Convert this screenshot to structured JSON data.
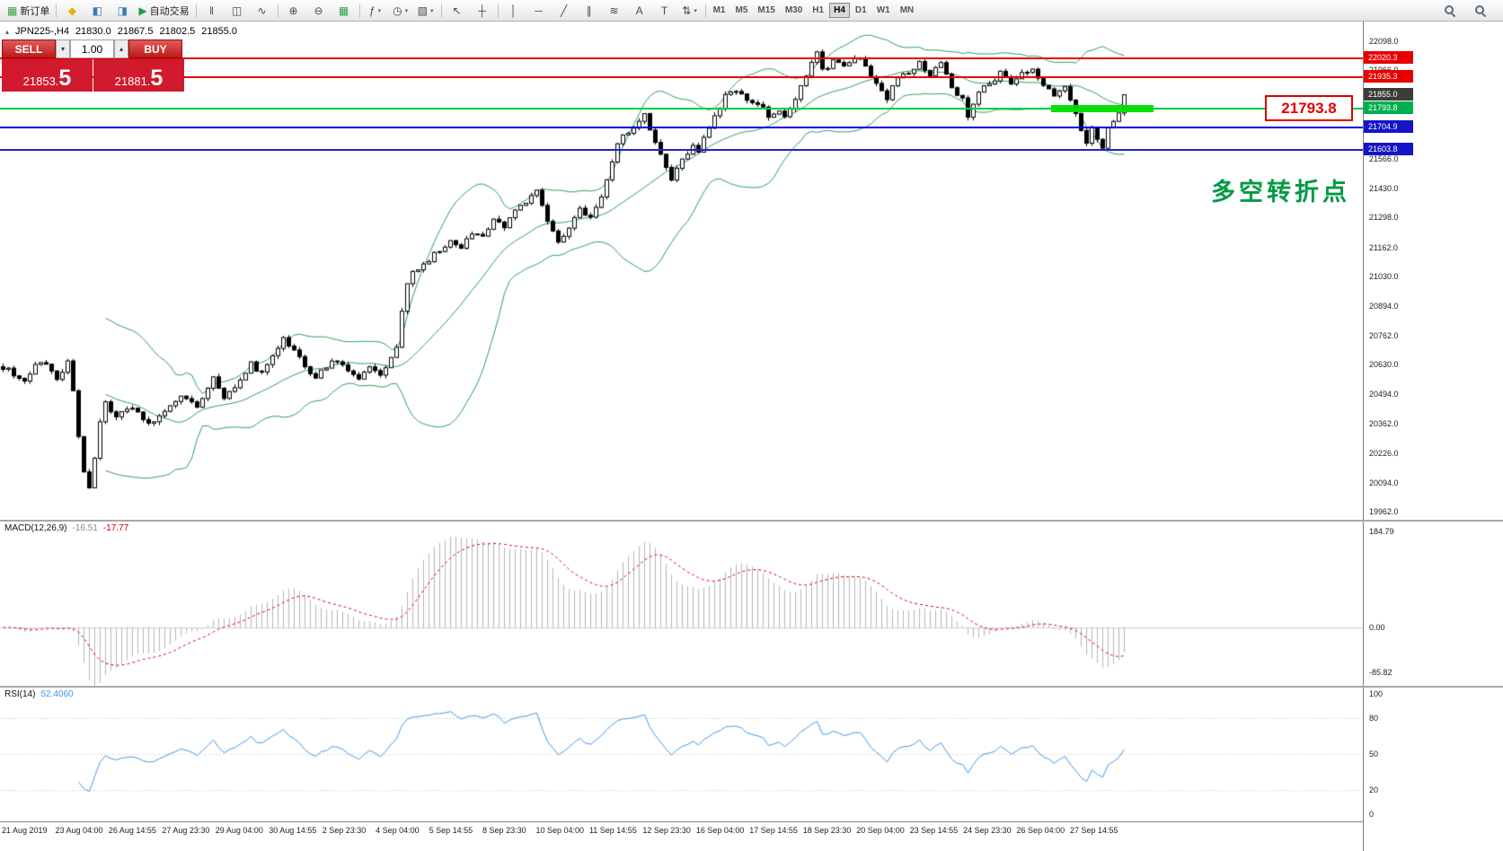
{
  "toolbar": {
    "groups": [
      {
        "items": [
          {
            "name": "new-order-button",
            "glyph": "▦",
            "glyph_color": "#3aa03a",
            "label": "新订单"
          }
        ]
      },
      {
        "items": [
          {
            "name": "favorites-icon",
            "glyph": "◆",
            "glyph_color": "#e8b400"
          },
          {
            "name": "market-watch-icon",
            "glyph": "◧",
            "glyph_color": "#3a7abd"
          },
          {
            "name": "data-window-icon",
            "glyph": "◨",
            "glyph_color": "#3a7abd"
          },
          {
            "name": "autotrading-button",
            "glyph": "▶",
            "glyph_color": "#22a03c",
            "label": "自动交易"
          }
        ]
      },
      {
        "items": [
          {
            "name": "bar-chart-icon",
            "glyph": "ǁ"
          },
          {
            "name": "candlestick-chart-icon",
            "glyph": "◫"
          },
          {
            "name": "line-chart-icon",
            "glyph": "∿"
          }
        ]
      },
      {
        "items": [
          {
            "name": "zoom-in-icon",
            "glyph": "⊕"
          },
          {
            "name": "zoom-out-icon",
            "glyph": "⊖"
          },
          {
            "name": "tile-windows-icon",
            "glyph": "▦",
            "glyph_color": "#2f9e4f"
          }
        ]
      },
      {
        "items": [
          {
            "name": "indicators-icon",
            "glyph": "ƒ",
            "dropdown": true
          },
          {
            "name": "periods-icon",
            "glyph": "◷",
            "dropdown": true
          },
          {
            "name": "templates-icon",
            "glyph": "▧",
            "dropdown": true
          }
        ]
      },
      {
        "items": [
          {
            "name": "cursor-icon",
            "glyph": "↖"
          },
          {
            "name": "crosshair-icon",
            "glyph": "┼"
          }
        ]
      },
      {
        "items": [
          {
            "name": "vertical-line-icon",
            "glyph": "│"
          },
          {
            "name": "horizontal-line-icon",
            "glyph": "─"
          },
          {
            "name": "trendline-icon",
            "glyph": "╱"
          },
          {
            "name": "channel-icon",
            "glyph": "∥"
          },
          {
            "name": "fibonacci-icon",
            "glyph": "≋"
          },
          {
            "name": "text-icon",
            "glyph": "A"
          },
          {
            "name": "label-icon",
            "glyph": "T"
          },
          {
            "name": "arrows-icon",
            "glyph": "⇅",
            "dropdown": true
          }
        ]
      }
    ],
    "timeframes": [
      "M1",
      "M5",
      "M15",
      "M30",
      "H1",
      "H4",
      "D1",
      "W1",
      "MN"
    ],
    "active_timeframe": "H4"
  },
  "trade_panel": {
    "sell_label": "SELL",
    "buy_label": "BUY",
    "volume": "1.00",
    "sell_price_main": "21853.",
    "sell_price_big": "5",
    "buy_price_main": "21881.",
    "buy_price_big": "5"
  },
  "chart_header": {
    "symbol": "JPN225-,H4",
    "open": "21830.0",
    "high": "21867.5",
    "low": "21802.5",
    "close": "21855.0"
  },
  "annotations": {
    "callout_price": "21793.8",
    "note_text": "多空转折点"
  },
  "price_axis": {
    "ticks": [
      {
        "v": 22098.0,
        "label": "22098.0"
      },
      {
        "v": 21966.0,
        "label": "21966.0"
      },
      {
        "v": 21566.0,
        "label": "21566.0"
      },
      {
        "v": 21430.0,
        "label": "21430.0"
      },
      {
        "v": 21298.0,
        "label": "21298.0"
      },
      {
        "v": 21162.0,
        "label": "21162.0"
      },
      {
        "v": 21030.0,
        "label": "21030.0"
      },
      {
        "v": 20894.0,
        "label": "20894.0"
      },
      {
        "v": 20762.0,
        "label": "20762.0"
      },
      {
        "v": 20630.0,
        "label": "20630.0"
      },
      {
        "v": 20494.0,
        "label": "20494.0"
      },
      {
        "v": 20362.0,
        "label": "20362.0"
      },
      {
        "v": 20226.0,
        "label": "20226.0"
      },
      {
        "v": 20094.0,
        "label": "20094.0"
      },
      {
        "v": 19962.0,
        "label": "19962.0"
      }
    ],
    "badges": [
      {
        "name": "resistance-badge-1",
        "v": 22020.3,
        "label": "22020.3",
        "color": "#e60000"
      },
      {
        "name": "resistance-badge-2",
        "v": 21935.3,
        "label": "21935.3",
        "color": "#e60000"
      },
      {
        "name": "current-price-badge",
        "v": 21855.0,
        "label": "21855.0",
        "color": "#3c3c3c"
      },
      {
        "name": "pivot-badge",
        "v": 21793.8,
        "label": "21793.8",
        "color": "#00b050"
      },
      {
        "name": "support-badge-1",
        "v": 21704.9,
        "label": "21704.9",
        "color": "#1414c8"
      },
      {
        "name": "support-badge-2",
        "v": 21603.8,
        "label": "21603.8",
        "color": "#1414c8"
      }
    ]
  },
  "macd_panel": {
    "label": "MACD(12,26,9)",
    "value_main": "-16.51",
    "value_signal": "-17.77",
    "axis": [
      {
        "v": 184.79,
        "label": "184.79"
      },
      {
        "v": 0,
        "label": "0.00"
      },
      {
        "v": -85.82,
        "label": "-85.82"
      }
    ]
  },
  "rsi_panel": {
    "label": "RSI(14)",
    "value": "52.4060",
    "axis": [
      {
        "v": 100,
        "label": "100"
      },
      {
        "v": 80,
        "label": "80"
      },
      {
        "v": 50,
        "label": "50"
      },
      {
        "v": 20,
        "label": "20"
      },
      {
        "v": 0,
        "label": "0"
      }
    ],
    "levels": [
      80,
      50,
      20
    ]
  },
  "time_axis": [
    "21 Aug 2019",
    "23 Aug 04:00",
    "26 Aug 14:55",
    "27 Aug 23:30",
    "29 Aug 04:00",
    "30 Aug 14:55",
    "2 Sep 23:30",
    "4 Sep 04:00",
    "5 Sep 14:55",
    "8 Sep 23:30",
    "10 Sep 04:00",
    "11 Sep 14:55",
    "12 Sep 23:30",
    "16 Sep 04:00",
    "17 Sep 14:55",
    "18 Sep 23:30",
    "20 Sep 04:00",
    "23 Sep 14:55",
    "24 Sep 23:30",
    "26 Sep 04:00",
    "27 Sep 14:55"
  ],
  "chart_data": {
    "type": "candlestick",
    "symbol": "JPN225-",
    "timeframe": "H4",
    "last_ohlc": {
      "open": 21830.0,
      "high": 21867.5,
      "low": 21802.5,
      "close": 21855.0
    },
    "price_range": [
      19962.0,
      22098.0
    ],
    "candle_count": 209,
    "body_vol": 26,
    "wick_extra": 16,
    "price_path": [
      [
        0,
        20620
      ],
      [
        4,
        20560
      ],
      [
        7,
        20650
      ],
      [
        10,
        20570
      ],
      [
        12,
        20640
      ],
      [
        13,
        20500
      ],
      [
        14,
        20300
      ],
      [
        15,
        20130
      ],
      [
        16,
        20080
      ],
      [
        17,
        20200
      ],
      [
        18,
        20360
      ],
      [
        19,
        20460
      ],
      [
        21,
        20390
      ],
      [
        24,
        20440
      ],
      [
        27,
        20360
      ],
      [
        30,
        20430
      ],
      [
        33,
        20490
      ],
      [
        36,
        20440
      ],
      [
        39,
        20580
      ],
      [
        41,
        20480
      ],
      [
        44,
        20550
      ],
      [
        46,
        20630
      ],
      [
        48,
        20590
      ],
      [
        50,
        20680
      ],
      [
        52,
        20740
      ],
      [
        54,
        20700
      ],
      [
        56,
        20630
      ],
      [
        58,
        20570
      ],
      [
        60,
        20620
      ],
      [
        62,
        20650
      ],
      [
        64,
        20590
      ],
      [
        66,
        20560
      ],
      [
        68,
        20610
      ],
      [
        70,
        20590
      ],
      [
        72,
        20650
      ],
      [
        73,
        20700
      ],
      [
        74,
        20860
      ],
      [
        75,
        21010
      ],
      [
        77,
        21070
      ],
      [
        80,
        21130
      ],
      [
        83,
        21190
      ],
      [
        85,
        21160
      ],
      [
        87,
        21230
      ],
      [
        89,
        21210
      ],
      [
        91,
        21280
      ],
      [
        93,
        21260
      ],
      [
        95,
        21320
      ],
      [
        97,
        21360
      ],
      [
        99,
        21430
      ],
      [
        101,
        21280
      ],
      [
        103,
        21190
      ],
      [
        105,
        21260
      ],
      [
        107,
        21330
      ],
      [
        109,
        21300
      ],
      [
        111,
        21380
      ],
      [
        112,
        21470
      ],
      [
        113,
        21560
      ],
      [
        114,
        21640
      ],
      [
        116,
        21690
      ],
      [
        118,
        21740
      ],
      [
        119,
        21770
      ],
      [
        121,
        21640
      ],
      [
        123,
        21530
      ],
      [
        124,
        21480
      ],
      [
        126,
        21560
      ],
      [
        128,
        21620
      ],
      [
        129,
        21600
      ],
      [
        131,
        21700
      ],
      [
        133,
        21800
      ],
      [
        134,
        21860
      ],
      [
        136,
        21880
      ],
      [
        138,
        21840
      ],
      [
        140,
        21820
      ],
      [
        142,
        21760
      ],
      [
        144,
        21790
      ],
      [
        145,
        21750
      ],
      [
        147,
        21840
      ],
      [
        149,
        21930
      ],
      [
        150,
        22000
      ],
      [
        151,
        22060
      ],
      [
        152,
        21960
      ],
      [
        154,
        22010
      ],
      [
        156,
        21980
      ],
      [
        158,
        22030
      ],
      [
        160,
        21990
      ],
      [
        162,
        21900
      ],
      [
        164,
        21830
      ],
      [
        166,
        21940
      ],
      [
        168,
        21960
      ],
      [
        170,
        22000
      ],
      [
        172,
        21950
      ],
      [
        174,
        21990
      ],
      [
        176,
        21900
      ],
      [
        178,
        21830
      ],
      [
        179,
        21760
      ],
      [
        181,
        21870
      ],
      [
        183,
        21910
      ],
      [
        185,
        21950
      ],
      [
        187,
        21900
      ],
      [
        189,
        21960
      ],
      [
        191,
        21980
      ],
      [
        193,
        21890
      ],
      [
        195,
        21850
      ],
      [
        197,
        21880
      ],
      [
        199,
        21760
      ],
      [
        200,
        21680
      ],
      [
        201,
        21640
      ],
      [
        202,
        21700
      ],
      [
        203,
        21660
      ],
      [
        204,
        21620
      ],
      [
        205,
        21700
      ],
      [
        206,
        21740
      ],
      [
        207,
        21780
      ],
      [
        208,
        21850
      ]
    ],
    "overlays": {
      "bollinger_period": 20,
      "bollinger_dev": 2,
      "bollinger_color": "#2aa052"
    },
    "indicators": {
      "macd": [
        12,
        26,
        9
      ],
      "macd_values": [
        -16.51,
        -17.77
      ],
      "rsi": [
        14
      ],
      "rsi_value": 52.406
    },
    "levels": [
      {
        "name": "resistance-line-1",
        "value": 22020.3,
        "color": "#e60000",
        "width": 2
      },
      {
        "name": "resistance-line-2",
        "value": 21935.3,
        "color": "#e60000",
        "width": 2
      },
      {
        "name": "pivot-line",
        "value": 21793.8,
        "color": "#00cc44",
        "width": 2
      },
      {
        "name": "support-line-1",
        "value": 21704.9,
        "color": "#0000e6",
        "width": 2
      },
      {
        "name": "support-line-2",
        "value": 21603.8,
        "color": "#2222cc",
        "width": 2
      }
    ],
    "highlight_zone": {
      "value": 21793.8,
      "from_idx": 195,
      "to_idx": 214,
      "color": "#00dd00",
      "height": 8
    },
    "colors": {
      "candle_up": "#ffffff",
      "candle_down": "#000000",
      "candle_outline": "#000000",
      "macd_hist": "#b4b4b4",
      "macd_signal": "#e00000",
      "rsi_line": "#3f97e8"
    }
  }
}
